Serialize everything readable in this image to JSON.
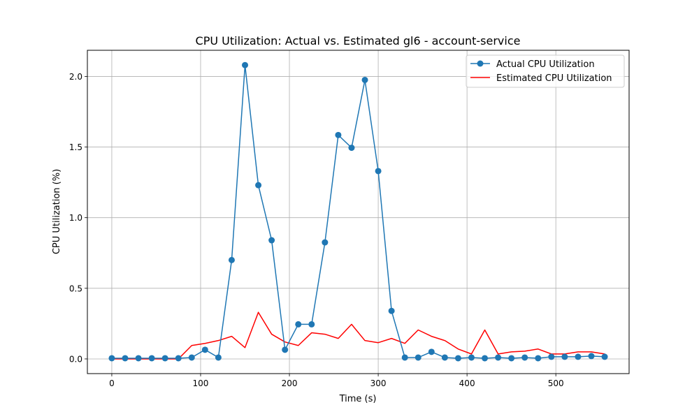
{
  "chart_data": {
    "type": "line",
    "title": "CPU Utilization: Actual vs. Estimated gl6 - account-service",
    "xlabel": "Time (s)",
    "ylabel": "CPU Utilization (%)",
    "xlim": [
      -27.5,
      582.5
    ],
    "ylim": [
      -0.104,
      2.185
    ],
    "xticks": [
      0,
      100,
      200,
      300,
      400,
      500
    ],
    "yticks": [
      0.0,
      0.5,
      1.0,
      1.5,
      2.0
    ],
    "xtick_labels": [
      "0",
      "100",
      "200",
      "300",
      "400",
      "500"
    ],
    "ytick_labels": [
      "0.0",
      "0.5",
      "1.0",
      "1.5",
      "2.0"
    ],
    "grid": true,
    "legend_position": "top-right",
    "x": [
      0,
      15,
      30,
      45,
      60,
      75,
      90,
      105,
      120,
      135,
      150,
      165,
      180,
      195,
      210,
      225,
      240,
      255,
      270,
      285,
      300,
      315,
      330,
      345,
      360,
      375,
      390,
      405,
      420,
      435,
      450,
      465,
      480,
      495,
      510,
      525,
      540,
      555
    ],
    "series": [
      {
        "name": "Actual CPU Utilization",
        "color": "#1f77b4",
        "marker": "circle",
        "values": [
          0.005,
          0.005,
          0.005,
          0.005,
          0.005,
          0.005,
          0.01,
          0.065,
          0.01,
          0.7,
          2.08,
          1.23,
          0.84,
          0.065,
          0.245,
          0.245,
          0.825,
          1.585,
          1.495,
          1.975,
          1.33,
          0.34,
          0.01,
          0.01,
          0.05,
          0.01,
          0.005,
          0.01,
          0.005,
          0.01,
          0.005,
          0.01,
          0.005,
          0.015,
          0.015,
          0.015,
          0.02,
          0.015
        ]
      },
      {
        "name": "Estimated CPU Utilization",
        "color": "#ff0000",
        "marker": "none",
        "values": [
          0.0,
          0.0,
          0.0,
          0.0,
          0.0,
          0.0,
          0.095,
          0.11,
          0.13,
          0.16,
          0.08,
          0.33,
          0.175,
          0.12,
          0.095,
          0.185,
          0.175,
          0.145,
          0.245,
          0.13,
          0.115,
          0.145,
          0.11,
          0.205,
          0.16,
          0.13,
          0.07,
          0.035,
          0.205,
          0.035,
          0.05,
          0.055,
          0.07,
          0.035,
          0.035,
          0.05,
          0.05,
          0.035
        ]
      }
    ]
  }
}
